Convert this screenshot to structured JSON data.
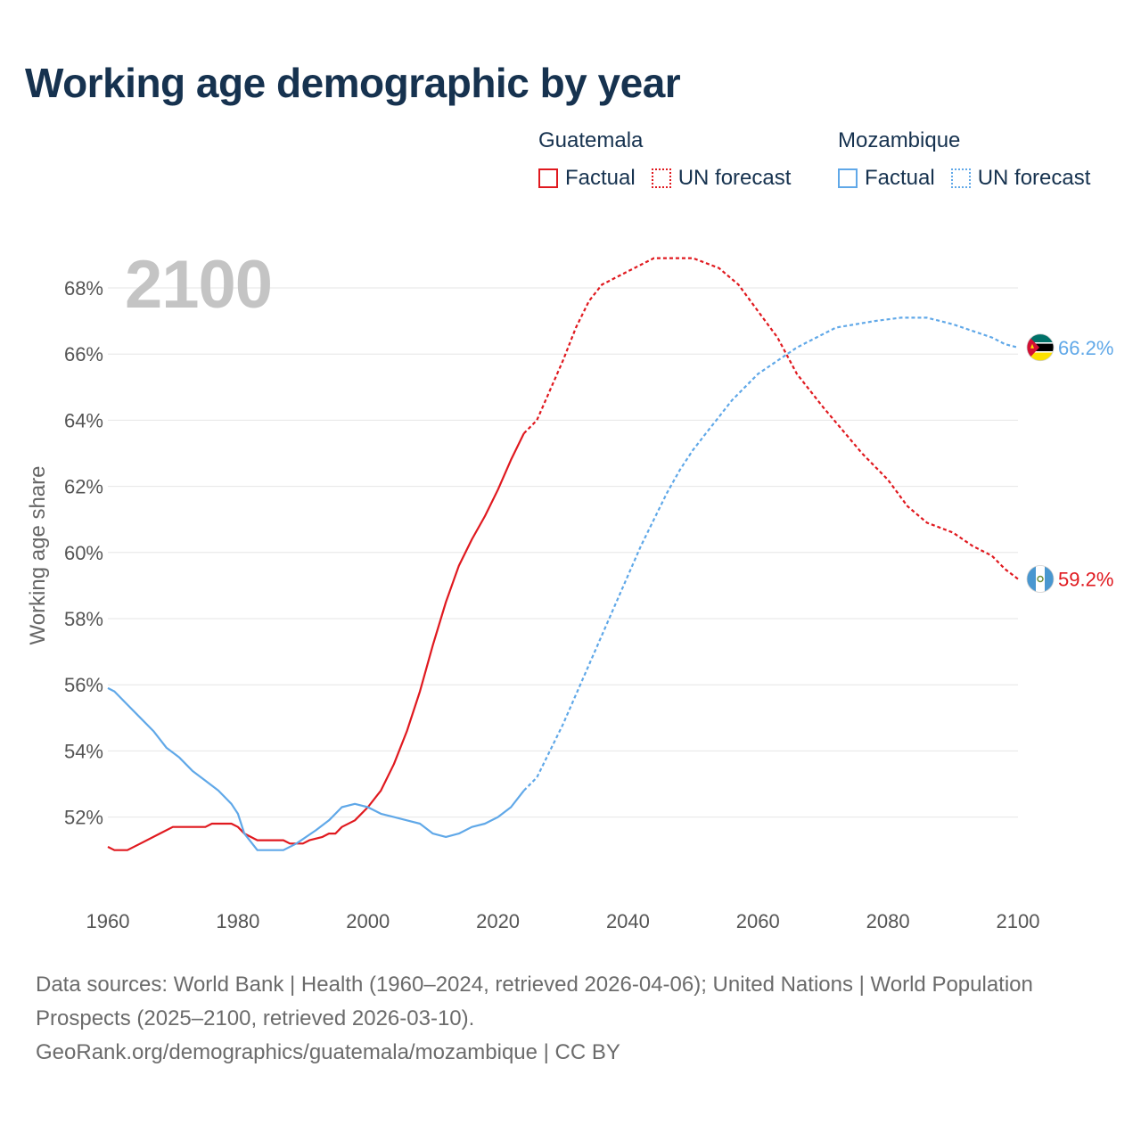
{
  "title": "Working age demographic by year",
  "year_display": "2100",
  "legend": {
    "groups": [
      {
        "name": "Guatemala",
        "color": "#e0191f",
        "factual_label": "Factual",
        "forecast_label": "UN forecast"
      },
      {
        "name": "Mozambique",
        "color": "#60a8e8",
        "factual_label": "Factual",
        "forecast_label": "UN forecast"
      }
    ]
  },
  "footer": {
    "line1": "Data sources: World Bank | Health (1960–2024, retrieved 2026-04-06); United Nations | World Population Prospects (2025–2100, retrieved 2026-03-10).",
    "line2": "GeoRank.org/demographics/guatemala/mozambique | CC BY"
  },
  "chart_data": {
    "type": "line",
    "title": "Working age demographic by year",
    "xlabel": "",
    "ylabel": "Working age share",
    "xlim": [
      1960,
      2100
    ],
    "ylim": [
      50,
      69.5
    ],
    "x_ticks": [
      1960,
      1980,
      2000,
      2020,
      2040,
      2060,
      2080,
      2100
    ],
    "y_ticks": [
      52,
      54,
      56,
      58,
      60,
      62,
      64,
      66,
      68
    ],
    "y_tick_format": "{v}%",
    "grid": true,
    "factual_until": 2024,
    "series": [
      {
        "name": "Guatemala",
        "color": "#e0191f",
        "end_label": "59.2%",
        "flag": "guatemala-flag",
        "points": [
          [
            1960,
            51.1
          ],
          [
            1961,
            51.0
          ],
          [
            1963,
            51.0
          ],
          [
            1965,
            51.2
          ],
          [
            1968,
            51.5
          ],
          [
            1970,
            51.7
          ],
          [
            1975,
            51.7
          ],
          [
            1976,
            51.8
          ],
          [
            1979,
            51.8
          ],
          [
            1980,
            51.7
          ],
          [
            1981,
            51.5
          ],
          [
            1983,
            51.3
          ],
          [
            1987,
            51.3
          ],
          [
            1988,
            51.2
          ],
          [
            1990,
            51.2
          ],
          [
            1991,
            51.3
          ],
          [
            1993,
            51.4
          ],
          [
            1994,
            51.5
          ],
          [
            1995,
            51.5
          ],
          [
            1996,
            51.7
          ],
          [
            1998,
            51.9
          ],
          [
            2000,
            52.3
          ],
          [
            2002,
            52.8
          ],
          [
            2004,
            53.6
          ],
          [
            2006,
            54.6
          ],
          [
            2008,
            55.8
          ],
          [
            2010,
            57.2
          ],
          [
            2012,
            58.5
          ],
          [
            2014,
            59.6
          ],
          [
            2016,
            60.4
          ],
          [
            2018,
            61.1
          ],
          [
            2020,
            61.9
          ],
          [
            2022,
            62.8
          ],
          [
            2024,
            63.6
          ],
          [
            2026,
            64.0
          ],
          [
            2028,
            64.9
          ],
          [
            2030,
            65.8
          ],
          [
            2032,
            66.8
          ],
          [
            2034,
            67.6
          ],
          [
            2036,
            68.1
          ],
          [
            2040,
            68.5
          ],
          [
            2044,
            68.9
          ],
          [
            2050,
            68.9
          ],
          [
            2054,
            68.6
          ],
          [
            2057,
            68.1
          ],
          [
            2060,
            67.3
          ],
          [
            2063,
            66.5
          ],
          [
            2066,
            65.4
          ],
          [
            2070,
            64.4
          ],
          [
            2073,
            63.7
          ],
          [
            2076,
            63.0
          ],
          [
            2080,
            62.2
          ],
          [
            2083,
            61.4
          ],
          [
            2086,
            60.9
          ],
          [
            2090,
            60.6
          ],
          [
            2093,
            60.2
          ],
          [
            2096,
            59.9
          ],
          [
            2098,
            59.5
          ],
          [
            2100,
            59.2
          ]
        ]
      },
      {
        "name": "Mozambique",
        "color": "#60a8e8",
        "end_label": "66.2%",
        "flag": "mozambique-flag",
        "points": [
          [
            1960,
            55.9
          ],
          [
            1961,
            55.8
          ],
          [
            1963,
            55.4
          ],
          [
            1965,
            55.0
          ],
          [
            1967,
            54.6
          ],
          [
            1969,
            54.1
          ],
          [
            1971,
            53.8
          ],
          [
            1973,
            53.4
          ],
          [
            1975,
            53.1
          ],
          [
            1977,
            52.8
          ],
          [
            1979,
            52.4
          ],
          [
            1980,
            52.1
          ],
          [
            1981,
            51.5
          ],
          [
            1983,
            51.0
          ],
          [
            1987,
            51.0
          ],
          [
            1989,
            51.2
          ],
          [
            1992,
            51.6
          ],
          [
            1994,
            51.9
          ],
          [
            1996,
            52.3
          ],
          [
            1998,
            52.4
          ],
          [
            2000,
            52.3
          ],
          [
            2002,
            52.1
          ],
          [
            2004,
            52.0
          ],
          [
            2006,
            51.9
          ],
          [
            2008,
            51.8
          ],
          [
            2010,
            51.5
          ],
          [
            2012,
            51.4
          ],
          [
            2014,
            51.5
          ],
          [
            2016,
            51.7
          ],
          [
            2018,
            51.8
          ],
          [
            2020,
            52.0
          ],
          [
            2022,
            52.3
          ],
          [
            2024,
            52.8
          ],
          [
            2026,
            53.2
          ],
          [
            2028,
            54.0
          ],
          [
            2030,
            54.8
          ],
          [
            2032,
            55.7
          ],
          [
            2034,
            56.6
          ],
          [
            2036,
            57.5
          ],
          [
            2038,
            58.4
          ],
          [
            2040,
            59.3
          ],
          [
            2042,
            60.2
          ],
          [
            2044,
            61.0
          ],
          [
            2046,
            61.8
          ],
          [
            2048,
            62.5
          ],
          [
            2050,
            63.1
          ],
          [
            2052,
            63.6
          ],
          [
            2054,
            64.1
          ],
          [
            2056,
            64.6
          ],
          [
            2058,
            65.0
          ],
          [
            2060,
            65.4
          ],
          [
            2063,
            65.8
          ],
          [
            2066,
            66.2
          ],
          [
            2069,
            66.5
          ],
          [
            2072,
            66.8
          ],
          [
            2075,
            66.9
          ],
          [
            2078,
            67.0
          ],
          [
            2082,
            67.1
          ],
          [
            2086,
            67.1
          ],
          [
            2090,
            66.9
          ],
          [
            2093,
            66.7
          ],
          [
            2096,
            66.5
          ],
          [
            2098,
            66.3
          ],
          [
            2100,
            66.2
          ]
        ]
      }
    ]
  }
}
